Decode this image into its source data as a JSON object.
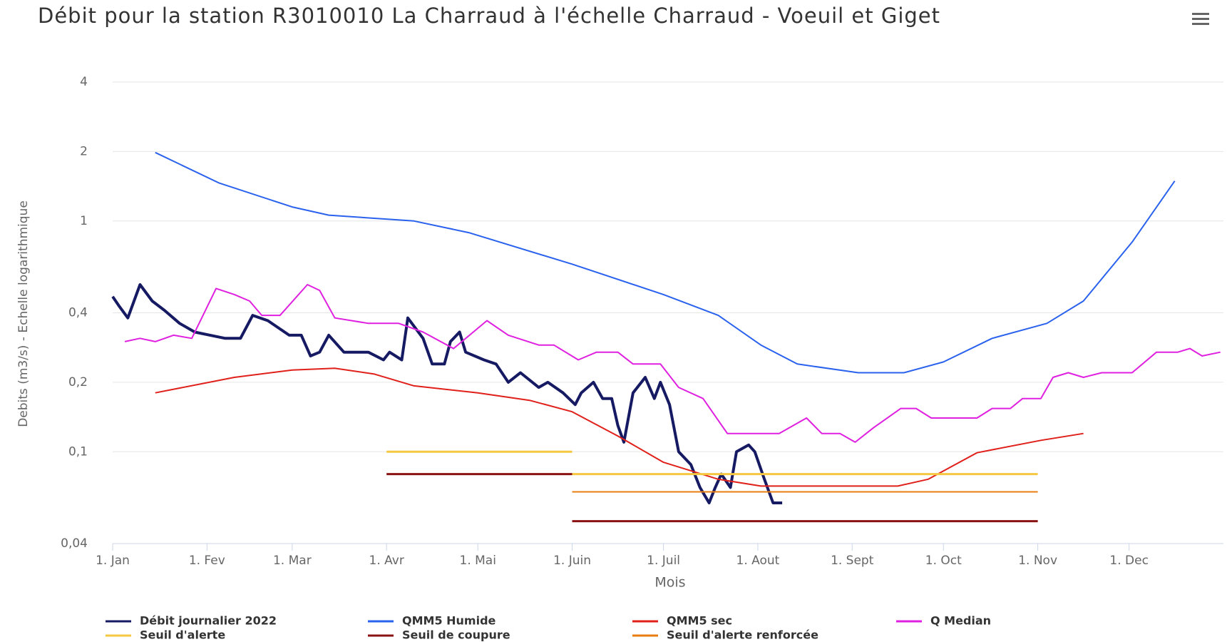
{
  "chart_data": {
    "type": "line",
    "title": "Débit pour la station R3010010 La Charraud à l'échelle Charraud - Voeuil et Giget",
    "x_label": "Mois",
    "y_label": "Debits (m3/s) - Echelle logarithmique",
    "log_y": true,
    "grid": true,
    "legend": "bottom",
    "xlim": [
      0,
      365
    ],
    "xticks": [
      {
        "value": 0,
        "label": "1. Jan"
      },
      {
        "value": 31,
        "label": "1. Fev"
      },
      {
        "value": 59,
        "label": "1. Mar"
      },
      {
        "value": 90,
        "label": "1. Avr"
      },
      {
        "value": 120,
        "label": "1. Mai"
      },
      {
        "value": 151,
        "label": "1. Juin"
      },
      {
        "value": 181,
        "label": "1. Juil"
      },
      {
        "value": 212,
        "label": "1. Aout"
      },
      {
        "value": 243,
        "label": "1. Sept"
      },
      {
        "value": 273,
        "label": "1. Oct"
      },
      {
        "value": 304,
        "label": "1. Nov"
      },
      {
        "value": 334,
        "label": "1. Dec"
      }
    ],
    "ylim": [
      0.04,
      4
    ],
    "yticks": [
      {
        "value": 0.04,
        "label": "0,04"
      },
      {
        "value": 0.1,
        "label": "0,1"
      },
      {
        "value": 0.2,
        "label": "0,2"
      },
      {
        "value": 0.4,
        "label": "0,4"
      },
      1,
      2,
      4
    ],
    "series": [
      {
        "name": "Débit journalier 2022",
        "color": "#161a63",
        "width": 4,
        "x": [
          0,
          2,
          5,
          9,
          13,
          17,
          22,
          27,
          32,
          37,
          42,
          46,
          51,
          58,
          62,
          65,
          68,
          71,
          76,
          84,
          89,
          91,
          95,
          97,
          102,
          105,
          109,
          111,
          114,
          116,
          122,
          126,
          130,
          134,
          140,
          143,
          148,
          152,
          154,
          158,
          161,
          164,
          166,
          168,
          171,
          175,
          178,
          180,
          183,
          186,
          190,
          193,
          196,
          198,
          200,
          203,
          205,
          209,
          211,
          214,
          217,
          220
        ],
        "values": [
          0.47,
          0.43,
          0.38,
          0.53,
          0.45,
          0.41,
          0.36,
          0.33,
          0.32,
          0.31,
          0.31,
          0.39,
          0.37,
          0.32,
          0.32,
          0.26,
          0.27,
          0.32,
          0.27,
          0.27,
          0.25,
          0.27,
          0.25,
          0.38,
          0.31,
          0.24,
          0.24,
          0.3,
          0.33,
          0.27,
          0.25,
          0.24,
          0.2,
          0.22,
          0.19,
          0.2,
          0.18,
          0.16,
          0.18,
          0.2,
          0.17,
          0.17,
          0.13,
          0.11,
          0.18,
          0.21,
          0.17,
          0.2,
          0.16,
          0.1,
          0.088,
          0.07,
          0.06,
          0.07,
          0.08,
          0.07,
          0.1,
          0.107,
          0.1,
          0.077,
          0.06,
          0.06
        ]
      },
      {
        "name": "QMM5 Humide",
        "color": "#2a62ee",
        "width": 2,
        "x": [
          14,
          35,
          59,
          71,
          99,
          117,
          151,
          181,
          199,
          213,
          225,
          245,
          260,
          273,
          289,
          307,
          319,
          335,
          349
        ],
        "values": [
          1.98,
          1.46,
          1.15,
          1.06,
          1.0,
          0.89,
          0.65,
          0.48,
          0.39,
          0.29,
          0.24,
          0.22,
          0.22,
          0.245,
          0.31,
          0.36,
          0.45,
          0.81,
          1.49
        ]
      },
      {
        "name": "QMM5 sec",
        "color": "#e0201a",
        "width": 2,
        "x": [
          14,
          40,
          59,
          73,
          86,
          99,
          120,
          137,
          151,
          166,
          181,
          199,
          213,
          258,
          268,
          284,
          305,
          319
        ],
        "values": [
          0.18,
          0.21,
          0.226,
          0.23,
          0.217,
          0.193,
          0.18,
          0.167,
          0.149,
          0.117,
          0.09,
          0.076,
          0.071,
          0.071,
          0.076,
          0.099,
          0.112,
          0.12
        ]
      },
      {
        "name": "Q Median",
        "color": "#e020e0",
        "width": 2,
        "x": [
          4,
          9,
          14,
          20,
          26,
          34,
          40,
          45,
          49,
          55,
          64,
          68,
          73,
          84,
          94,
          102,
          112,
          123,
          130,
          140,
          145,
          153,
          159,
          166,
          171,
          180,
          186,
          194,
          202,
          219,
          228,
          233,
          239,
          244,
          250,
          259,
          264,
          269,
          284,
          289,
          295,
          299,
          305,
          309,
          314,
          319,
          325,
          335,
          343,
          350,
          354,
          358,
          364
        ],
        "values": [
          0.3,
          0.31,
          0.3,
          0.32,
          0.31,
          0.51,
          0.48,
          0.45,
          0.39,
          0.39,
          0.53,
          0.5,
          0.38,
          0.36,
          0.36,
          0.33,
          0.28,
          0.37,
          0.32,
          0.29,
          0.29,
          0.25,
          0.27,
          0.27,
          0.24,
          0.24,
          0.19,
          0.17,
          0.12,
          0.12,
          0.14,
          0.12,
          0.12,
          0.11,
          0.127,
          0.154,
          0.154,
          0.14,
          0.14,
          0.154,
          0.154,
          0.17,
          0.17,
          0.21,
          0.22,
          0.21,
          0.22,
          0.22,
          0.27,
          0.27,
          0.28,
          0.26,
          0.27
        ]
      },
      {
        "name": "Seuil d'alerte",
        "color": "#f5c842",
        "width": 3,
        "x": [
          90,
          151,
          151,
          151,
          304
        ],
        "values": [
          0.1,
          0.1,
          null,
          0.08,
          0.08
        ]
      },
      {
        "name": "Seuil de coupure",
        "color": "#8b1212",
        "width": 3,
        "x": [
          90,
          151,
          151,
          151,
          304
        ],
        "values": [
          0.08,
          0.08,
          null,
          0.05,
          0.05
        ]
      },
      {
        "name": "Seuil d'alerte renforcée",
        "color": "#e87d10",
        "width": 2,
        "x": [
          151,
          304
        ],
        "values": [
          0.067,
          0.067
        ]
      }
    ]
  }
}
